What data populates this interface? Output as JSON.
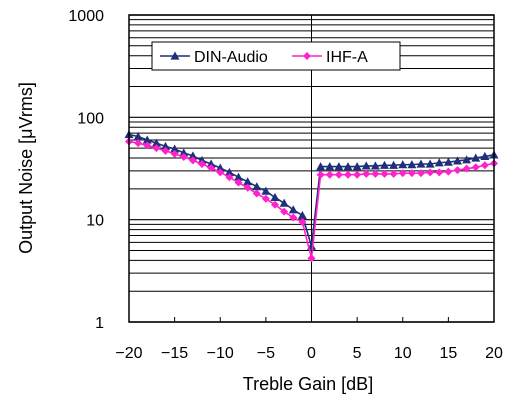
{
  "chart_data": {
    "type": "line",
    "title": "",
    "xlabel": "Treble Gain [dB]",
    "ylabel": "Output Noise [μVrms]",
    "xlim": [
      -20,
      20
    ],
    "ylim": [
      1,
      1000
    ],
    "y_scale": "log",
    "grid": true,
    "legend_position": "top",
    "x_ticks": [
      -20,
      -15,
      -10,
      -5,
      0,
      5,
      10,
      15,
      20
    ],
    "x_tick_labels": [
      "−20",
      "−15",
      "−10",
      "−5",
      "0",
      "5",
      "10",
      "15",
      "20"
    ],
    "y_ticks": [
      1,
      10,
      100,
      1000
    ],
    "y_tick_labels": [
      "1",
      "10",
      "100",
      "1000"
    ],
    "x": [
      -20,
      -19,
      -18,
      -17,
      -16,
      -15,
      -14,
      -13,
      -12,
      -11,
      -10,
      -9,
      -8,
      -7,
      -6,
      -5,
      -4,
      -3,
      -2,
      -1,
      0,
      1,
      2,
      3,
      4,
      5,
      6,
      7,
      8,
      9,
      10,
      11,
      12,
      13,
      14,
      15,
      16,
      17,
      18,
      19,
      20
    ],
    "series": [
      {
        "name": "DIN-Audio",
        "color": "#1f2f7a",
        "marker": "triangle",
        "values": [
          68,
          65,
          60,
          56,
          52,
          49,
          45,
          42,
          38,
          35,
          32,
          29,
          26,
          23.5,
          21,
          19,
          16.5,
          14.5,
          12.5,
          11,
          5.5,
          33,
          33,
          33,
          33,
          33,
          33.5,
          33.5,
          34,
          34,
          34.5,
          34.5,
          35,
          35,
          36,
          36.5,
          37.5,
          38.5,
          40,
          41.5,
          43
        ]
      },
      {
        "name": "IHF-A",
        "color": "#ff22cc",
        "marker": "diamond",
        "values": [
          58,
          56,
          53,
          50,
          47,
          44,
          41,
          38,
          35,
          32,
          29,
          26,
          23,
          20.5,
          18,
          16,
          14,
          12,
          10.5,
          9.5,
          4.2,
          27.5,
          27.5,
          27.5,
          27.5,
          27.5,
          28,
          28,
          28,
          28,
          28.5,
          28.5,
          28.5,
          29,
          29,
          29.5,
          30.5,
          31.5,
          32.5,
          34,
          35.5
        ]
      }
    ]
  }
}
